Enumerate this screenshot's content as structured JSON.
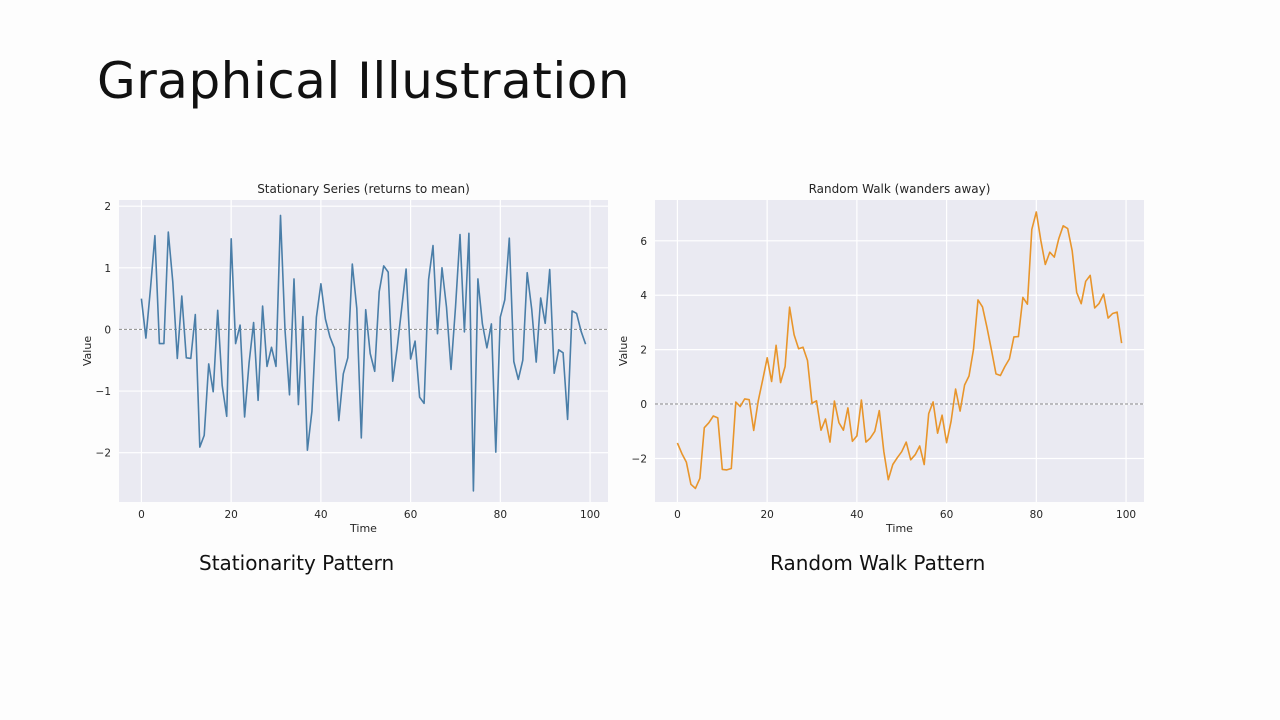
{
  "slide": {
    "title": "Graphical Illustration",
    "caption_left": "Stationarity Pattern",
    "caption_right": "Random Walk Pattern"
  },
  "chart_data": [
    {
      "type": "line",
      "title": "Stationary Series (returns to mean)",
      "xlabel": "Time",
      "ylabel": "Value",
      "xlim": [
        -5,
        104
      ],
      "ylim": [
        -2.8,
        2.1
      ],
      "xticks": [
        0,
        20,
        40,
        60,
        80,
        100
      ],
      "yticks": [
        -2,
        -1,
        0,
        1,
        2
      ],
      "ytick_labels": [
        "−2",
        "−1",
        "0",
        "1",
        "2"
      ],
      "reference_line": 0,
      "grid": true,
      "background": "#eaeaf2",
      "line_color": "#4a7ea8",
      "series": [
        {
          "x": [
            0,
            1,
            2,
            3,
            4,
            5,
            6,
            7,
            8,
            9,
            10,
            11,
            12,
            13,
            14,
            15,
            16,
            17,
            18,
            19,
            20,
            21,
            22,
            23,
            24,
            25,
            26,
            27,
            28,
            29,
            30,
            31,
            32,
            33,
            34,
            35,
            36,
            37,
            38,
            39,
            40,
            41,
            42,
            43,
            44,
            45,
            46,
            47,
            48,
            49,
            50,
            51,
            52,
            53,
            54,
            55,
            56,
            57,
            58,
            59,
            60,
            61,
            62,
            63,
            64,
            65,
            66,
            67,
            68,
            69,
            70,
            71,
            72,
            73,
            74,
            75,
            76,
            77,
            78,
            79,
            80,
            81,
            82,
            83,
            84,
            85,
            86,
            87,
            88,
            89,
            90,
            91,
            92,
            93,
            94,
            95,
            96,
            97,
            98,
            99
          ],
          "values": [
            0.5,
            -0.14,
            0.65,
            1.52,
            -0.23,
            -0.23,
            1.58,
            0.77,
            -0.47,
            0.54,
            -0.46,
            -0.47,
            0.24,
            -1.91,
            -1.72,
            -0.56,
            -1.01,
            0.31,
            -0.91,
            -1.41,
            1.47,
            -0.23,
            0.07,
            -1.42,
            -0.54,
            0.11,
            -1.15,
            0.38,
            -0.6,
            -0.29,
            -0.6,
            1.85,
            -0.01,
            -1.06,
            0.82,
            -1.22,
            0.21,
            -1.96,
            -1.33,
            0.2,
            0.74,
            0.17,
            -0.12,
            -0.3,
            -1.48,
            -0.72,
            -0.46,
            1.06,
            0.34,
            -1.76,
            0.32,
            -0.39,
            -0.68,
            0.61,
            1.03,
            0.93,
            -0.84,
            -0.31,
            0.33,
            0.98,
            -0.48,
            -0.19,
            -1.1,
            -1.2,
            0.81,
            1.36,
            -0.07,
            1.0,
            0.36,
            -0.65,
            0.36,
            1.54,
            -0.04,
            1.56,
            -2.62,
            0.82,
            0.09,
            -0.3,
            0.09,
            -1.99,
            0.2,
            0.48,
            1.48,
            -0.52,
            -0.81,
            -0.5,
            0.92,
            0.33,
            -0.53,
            0.51,
            0.1,
            0.97,
            -0.71,
            -0.33,
            -0.38,
            -1.46,
            0.3,
            0.26,
            -0.03,
            -0.24
          ]
        }
      ]
    },
    {
      "type": "line",
      "title": "Random Walk (wanders away)",
      "xlabel": "Time",
      "ylabel": "Value",
      "xlim": [
        -5,
        104
      ],
      "ylim": [
        -3.6,
        7.5
      ],
      "xticks": [
        0,
        20,
        40,
        60,
        80,
        100
      ],
      "yticks": [
        -2,
        0,
        2,
        4,
        6
      ],
      "ytick_labels": [
        "−2",
        "0",
        "2",
        "4",
        "6"
      ],
      "reference_line": 0,
      "grid": true,
      "background": "#eaeaf2",
      "line_color": "#e8952b",
      "series": [
        {
          "x": [
            0,
            1,
            2,
            3,
            4,
            5,
            6,
            7,
            8,
            9,
            10,
            11,
            12,
            13,
            14,
            15,
            16,
            17,
            18,
            19,
            20,
            21,
            22,
            23,
            24,
            25,
            26,
            27,
            28,
            29,
            30,
            31,
            32,
            33,
            34,
            35,
            36,
            37,
            38,
            39,
            40,
            41,
            42,
            43,
            44,
            45,
            46,
            47,
            48,
            49,
            50,
            51,
            52,
            53,
            54,
            55,
            56,
            57,
            58,
            59,
            60,
            61,
            62,
            63,
            64,
            65,
            66,
            67,
            68,
            69,
            70,
            71,
            72,
            73,
            74,
            75,
            76,
            77,
            78,
            79,
            80,
            81,
            82,
            83,
            84,
            85,
            86,
            87,
            88,
            89,
            90,
            91,
            92,
            93,
            94,
            95,
            96,
            97,
            98,
            99
          ],
          "values": [
            -1.43,
            -1.82,
            -2.14,
            -2.95,
            -3.1,
            -2.73,
            -0.87,
            -0.69,
            -0.44,
            -0.51,
            -2.4,
            -2.42,
            -2.37,
            0.07,
            -0.09,
            0.19,
            0.16,
            -0.97,
            0.11,
            0.89,
            1.7,
            0.83,
            2.16,
            0.79,
            1.38,
            3.56,
            2.55,
            2.03,
            2.09,
            1.6,
            0.03,
            0.12,
            -0.96,
            -0.55,
            -1.4,
            0.11,
            -0.68,
            -0.96,
            -0.14,
            -1.37,
            -1.17,
            0.15,
            -1.4,
            -1.25,
            -1.0,
            -0.24,
            -1.74,
            -2.78,
            -2.22,
            -1.97,
            -1.75,
            -1.4,
            -2.05,
            -1.86,
            -1.54,
            -2.22,
            -0.35,
            0.08,
            -1.07,
            -0.41,
            -1.42,
            -0.63,
            0.55,
            -0.26,
            0.7,
            1.03,
            2.01,
            3.83,
            3.57,
            2.81,
            1.98,
            1.11,
            1.05,
            1.38,
            1.66,
            2.47,
            2.48,
            3.92,
            3.67,
            6.42,
            7.06,
            6.02,
            5.13,
            5.58,
            5.4,
            6.08,
            6.55,
            6.45,
            5.63,
            4.1,
            3.69,
            4.51,
            4.73,
            3.53,
            3.7,
            4.04,
            3.16,
            3.33,
            3.38,
            2.24
          ]
        }
      ]
    }
  ]
}
